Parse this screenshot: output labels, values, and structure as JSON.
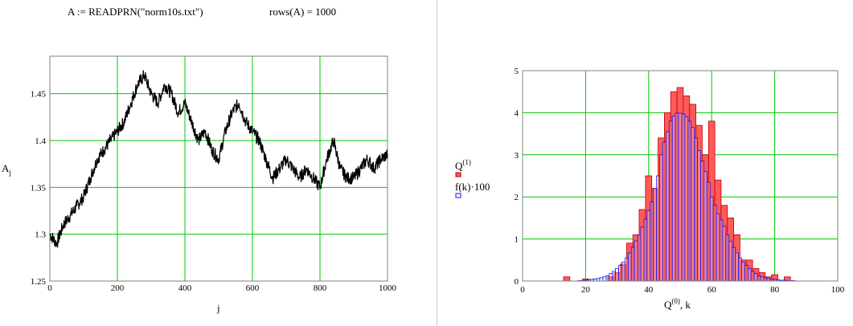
{
  "header": {
    "formula": "A := READPRN(\"norm10s.txt\")",
    "rows": "rows(A) = 1000"
  },
  "chart_data": [
    {
      "type": "line",
      "xlabel": "j",
      "ylabel": "A",
      "ylabel_sub": "j",
      "xlim": [
        0,
        1000
      ],
      "ylim": [
        1.25,
        1.49
      ],
      "xticks": [
        "0",
        "200",
        "400",
        "600",
        "800",
        "1000"
      ],
      "yticks": [
        "1.25",
        "1.3",
        "1.35",
        "1.4",
        "1.45"
      ],
      "grid": true,
      "x": [
        0,
        20,
        40,
        60,
        80,
        100,
        120,
        140,
        160,
        180,
        200,
        220,
        240,
        260,
        280,
        300,
        320,
        340,
        360,
        380,
        400,
        420,
        440,
        460,
        480,
        500,
        520,
        540,
        560,
        580,
        600,
        620,
        640,
        660,
        680,
        700,
        720,
        740,
        760,
        780,
        800,
        820,
        840,
        860,
        880,
        900,
        920,
        940,
        960,
        980,
        1000
      ],
      "y": [
        1.3,
        1.29,
        1.31,
        1.32,
        1.33,
        1.34,
        1.36,
        1.38,
        1.39,
        1.4,
        1.41,
        1.42,
        1.44,
        1.46,
        1.47,
        1.45,
        1.44,
        1.46,
        1.45,
        1.43,
        1.44,
        1.42,
        1.4,
        1.41,
        1.39,
        1.38,
        1.41,
        1.43,
        1.44,
        1.42,
        1.41,
        1.4,
        1.38,
        1.36,
        1.37,
        1.38,
        1.37,
        1.36,
        1.37,
        1.36,
        1.35,
        1.38,
        1.4,
        1.37,
        1.36,
        1.36,
        1.37,
        1.38,
        1.37,
        1.38,
        1.385
      ]
    },
    {
      "type": "bar",
      "xlabel": "Q",
      "xlabel_sup": "(0)",
      "xlabel_suffix": ", k",
      "xlim": [
        0,
        100
      ],
      "ylim": [
        0,
        5
      ],
      "xticks": [
        "0",
        "20",
        "40",
        "60",
        "80",
        "100"
      ],
      "yticks": [
        "0",
        "1",
        "2",
        "3",
        "4",
        "5"
      ],
      "grid": true,
      "legend_position": "left",
      "series": [
        {
          "name": "Q",
          "name_sup": "(1)",
          "color": "#ff5a5a",
          "edge": "#c00000",
          "bar_width": 2,
          "x": [
            14,
            20,
            28,
            30,
            32,
            34,
            36,
            38,
            40,
            42,
            44,
            46,
            48,
            50,
            52,
            54,
            56,
            58,
            60,
            62,
            64,
            66,
            68,
            70,
            72,
            74,
            76,
            78,
            80,
            84
          ],
          "values": [
            0.1,
            0.05,
            0.1,
            0.2,
            0.4,
            0.9,
            1.1,
            1.7,
            2.5,
            2.2,
            3.4,
            4.0,
            4.5,
            4.6,
            4.4,
            4.2,
            3.7,
            3.0,
            3.8,
            2.4,
            1.8,
            1.5,
            1.1,
            0.5,
            0.5,
            0.3,
            0.2,
            0.1,
            0.15,
            0.1
          ]
        },
        {
          "name": "f(k)·100",
          "color": "#ffffff",
          "edge": "#1010ff",
          "bar_width": 1,
          "x": [
            18,
            19,
            20,
            21,
            22,
            23,
            24,
            25,
            26,
            27,
            28,
            29,
            30,
            31,
            32,
            33,
            34,
            35,
            36,
            37,
            38,
            39,
            40,
            41,
            42,
            43,
            44,
            45,
            46,
            47,
            48,
            49,
            50,
            51,
            52,
            53,
            54,
            55,
            56,
            57,
            58,
            59,
            60,
            61,
            62,
            63,
            64,
            65,
            66,
            67,
            68,
            69,
            70,
            71,
            72,
            73,
            74,
            75,
            76,
            77,
            78,
            79,
            80,
            81,
            82,
            83,
            84,
            85,
            86
          ],
          "values": [
            0.01,
            0.01,
            0.02,
            0.03,
            0.04,
            0.05,
            0.06,
            0.08,
            0.1,
            0.13,
            0.18,
            0.23,
            0.3,
            0.37,
            0.45,
            0.55,
            0.67,
            0.8,
            0.95,
            1.1,
            1.28,
            1.47,
            1.67,
            1.88,
            2.2,
            2.5,
            3.0,
            3.3,
            3.55,
            3.8,
            3.92,
            3.99,
            3.99,
            3.97,
            3.9,
            3.8,
            3.65,
            3.4,
            3.1,
            2.85,
            2.6,
            2.35,
            2.0,
            1.8,
            1.6,
            1.45,
            1.3,
            1.1,
            0.95,
            0.8,
            0.67,
            0.55,
            0.45,
            0.37,
            0.3,
            0.23,
            0.18,
            0.13,
            0.1,
            0.08,
            0.06,
            0.05,
            0.04,
            0.03,
            0.02,
            0.02,
            0.01,
            0.01,
            0.01
          ]
        }
      ]
    }
  ]
}
